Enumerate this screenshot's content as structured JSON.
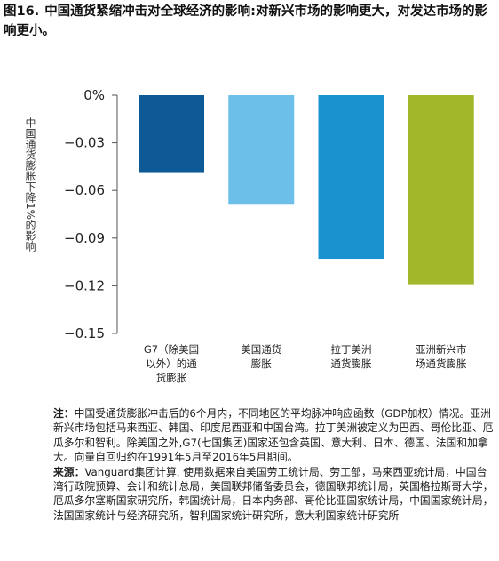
{
  "figure": {
    "number": "图16.",
    "title": "中国通货紧缩冲击对全球经济的影响:对新兴市场的影响更大，对发达市场的影响更小。"
  },
  "chart_data": {
    "type": "bar",
    "ylabel": "中国通货膨胀下降1%的影响",
    "ylim": [
      -0.15,
      0
    ],
    "yticks": [
      0,
      -0.03,
      -0.06,
      -0.09,
      -0.12,
      -0.15
    ],
    "ytick_labels": [
      "0%",
      "−0.03",
      "−0.06",
      "−0.09",
      "−0.12",
      "−0.15"
    ],
    "grid": false,
    "legend": "none",
    "categories": [
      [
        "G7（除美国",
        "以外）的通",
        "货膨胀"
      ],
      [
        "美国通货",
        "膨胀"
      ],
      [
        "拉丁美洲",
        "通货膨胀"
      ],
      [
        "亚洲新兴市",
        "场通货膨胀"
      ]
    ],
    "values": [
      -0.049,
      -0.069,
      -0.103,
      -0.119
    ],
    "colors": [
      "#0d5a96",
      "#6cbfe9",
      "#1a92cf",
      "#a3b72a"
    ]
  },
  "notes": {
    "note_head": "注：",
    "note_text": "中国受通货膨胀冲击后的6个月内，不同地区的平均脉冲响应函数（GDP加权）情况。亚洲新兴市场包括马来西亚、韩国、印度尼西亚和中国台湾。拉丁美洲被定义为巴西、哥伦比亚、厄瓜多尔和智利。除美国之外,G7(七国集团)国家还包含英国、意大利、日本、德国、法国和加拿大。向量自回归约在1991年5月至2016年5月期间。",
    "source_head": "来源：",
    "source_text": "Vanguard集团计算, 使用数据来自美国劳工统计局、劳工部，马来西亚统计局，中国台湾行政院预算、会计和统计总局，美国联邦储备委员会，德国联邦统计局，英国格拉斯哥大学，厄瓜多尔塞斯国家研究所，韩国统计局，日本内务部、哥伦比亚国家统计局，中国国家统计局，法国国家统计与经济研究所，智利国家统计研究所，意大利国家统计研究所"
  }
}
